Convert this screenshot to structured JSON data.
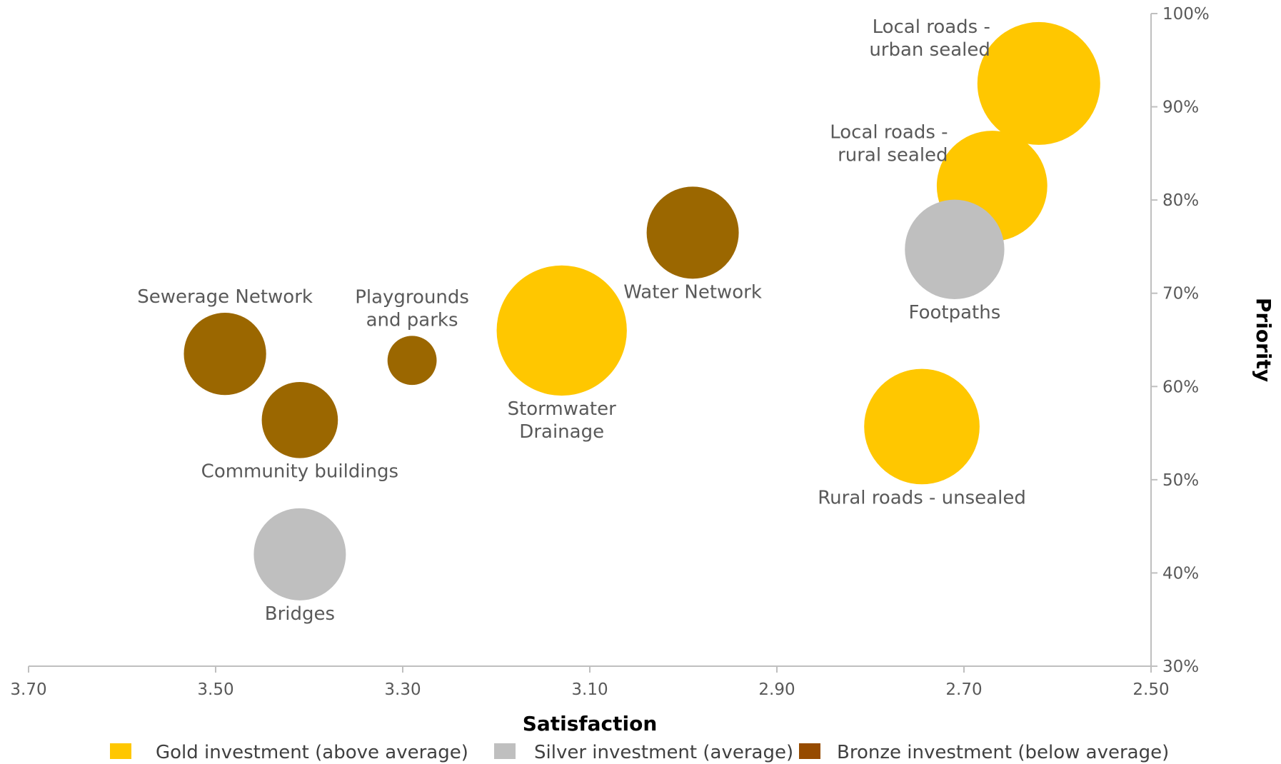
{
  "chart_data": {
    "type": "scatter",
    "subtype": "bubble",
    "xlabel": "Satisfaction",
    "ylabel": "Priority",
    "x_axis_reversed": true,
    "xlim": [
      3.7,
      2.5
    ],
    "ylim": [
      0.3,
      1.0
    ],
    "x_ticks": [
      "3.70",
      "3.50",
      "3.30",
      "3.10",
      "2.90",
      "2.70",
      "2.50"
    ],
    "x_tick_values": [
      3.7,
      3.5,
      3.3,
      3.1,
      2.9,
      2.7,
      2.5
    ],
    "y_ticks": [
      "30%",
      "40%",
      "50%",
      "60%",
      "70%",
      "80%",
      "90%",
      "100%"
    ],
    "y_tick_values": [
      0.3,
      0.4,
      0.5,
      0.6,
      0.7,
      0.8,
      0.9,
      1.0
    ],
    "grid": false,
    "legend_position": "bottom",
    "categories": [
      {
        "key": "gold",
        "label": "Gold investment (above average)",
        "color": "#FFC700"
      },
      {
        "key": "silver",
        "label": "Silver investment (average)",
        "color": "#BFBFBF"
      },
      {
        "key": "bronze",
        "label": "Bronze investment (below average)",
        "color": "#9B6700"
      }
    ],
    "legend_swatch_colors": {
      "gold": "#FFC700",
      "silver": "#BFBFBF",
      "bronze": "#964B00"
    },
    "points": [
      {
        "name": "Local roads - urban sealed",
        "label_lines": [
          "Local roads -",
          "urban sealed"
        ],
        "x": 2.62,
        "y": 0.925,
        "size": 1.0,
        "category": "gold",
        "label_pos": "upper-left"
      },
      {
        "name": "Local roads - rural sealed",
        "label_lines": [
          "Local roads -",
          "rural sealed"
        ],
        "x": 2.67,
        "y": 0.815,
        "size": 0.9,
        "category": "gold",
        "label_pos": "upper-left"
      },
      {
        "name": "Footpaths",
        "label_lines": [
          "Footpaths"
        ],
        "x": 2.71,
        "y": 0.747,
        "size": 0.81,
        "category": "silver",
        "label_pos": "below"
      },
      {
        "name": "Water Network",
        "label_lines": [
          "Water Network"
        ],
        "x": 2.99,
        "y": 0.765,
        "size": 0.75,
        "category": "bronze",
        "label_pos": "below"
      },
      {
        "name": "Stormwater Drainage",
        "label_lines": [
          "Stormwater",
          "Drainage"
        ],
        "x": 3.13,
        "y": 0.66,
        "size": 1.06,
        "category": "gold",
        "label_pos": "below"
      },
      {
        "name": "Playgrounds and parks",
        "label_lines": [
          "Playgrounds",
          "and parks"
        ],
        "x": 3.29,
        "y": 0.628,
        "size": 0.4,
        "category": "bronze",
        "label_pos": "above"
      },
      {
        "name": "Sewerage Network",
        "label_lines": [
          "Sewerage Network"
        ],
        "x": 3.49,
        "y": 0.635,
        "size": 0.67,
        "category": "bronze",
        "label_pos": "above"
      },
      {
        "name": "Community buildings",
        "label_lines": [
          "Community buildings"
        ],
        "x": 3.41,
        "y": 0.564,
        "size": 0.62,
        "category": "bronze",
        "label_pos": "below"
      },
      {
        "name": "Rural roads - unsealed",
        "label_lines": [
          "Rural roads - unsealed"
        ],
        "x": 2.745,
        "y": 0.557,
        "size": 0.94,
        "category": "gold",
        "label_pos": "below"
      },
      {
        "name": "Bridges",
        "label_lines": [
          "Bridges"
        ],
        "x": 3.41,
        "y": 0.42,
        "size": 0.75,
        "category": "silver",
        "label_pos": "below"
      }
    ]
  }
}
